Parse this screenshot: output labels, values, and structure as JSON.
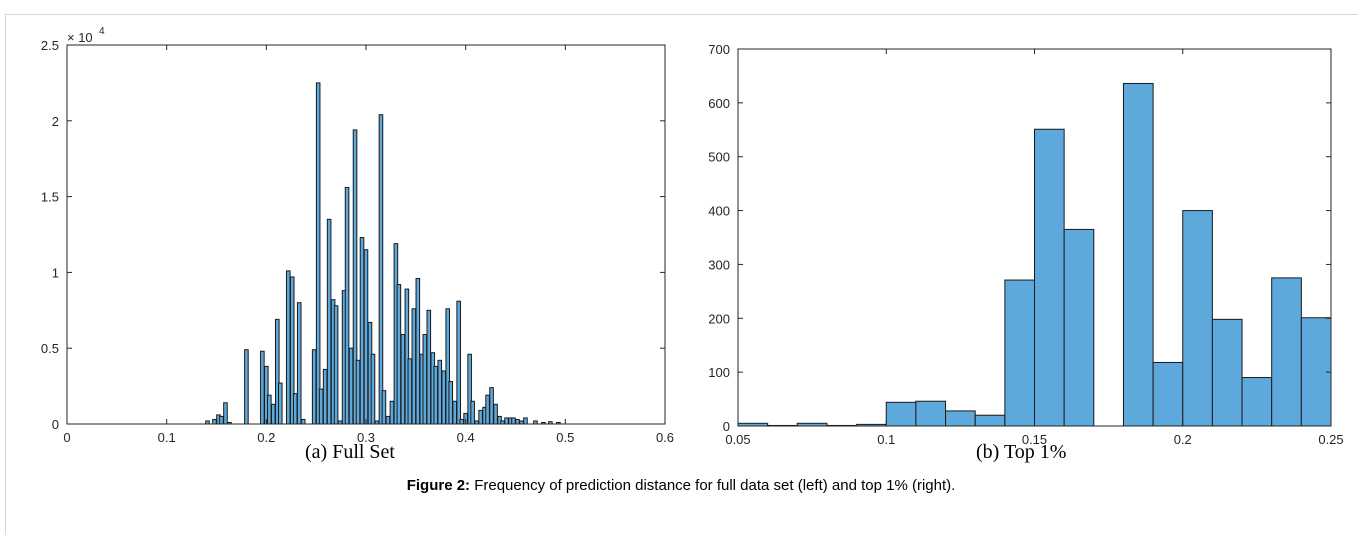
{
  "figure_caption": {
    "label": "Figure 2:",
    "text": " Frequency of prediction distance for full data set (left) and top 1% (right)."
  },
  "colors": {
    "bar_fill": "#5ea9dc",
    "bar_edge": "#1a1a1a",
    "axis": "#262626"
  },
  "chart_data": [
    {
      "type": "bar",
      "caption": "(a)  Full Set",
      "exponent_label": "× 10",
      "exponent_power": "4",
      "xlim": [
        0,
        0.6
      ],
      "ylim": [
        0,
        25000
      ],
      "xticks": [
        "0",
        "0.1",
        "0.2",
        "0.3",
        "0.4",
        "0.5",
        "0.6"
      ],
      "yticks": [
        "0",
        "0.5",
        "1",
        "1.5",
        "2",
        "2.5"
      ],
      "bar_width": 0.0036,
      "x": [
        0.141,
        0.148,
        0.152,
        0.155,
        0.159,
        0.163,
        0.18,
        0.196,
        0.2,
        0.203,
        0.207,
        0.211,
        0.214,
        0.222,
        0.226,
        0.229,
        0.233,
        0.237,
        0.248,
        0.252,
        0.255,
        0.259,
        0.263,
        0.267,
        0.27,
        0.274,
        0.278,
        0.281,
        0.285,
        0.289,
        0.292,
        0.296,
        0.3,
        0.304,
        0.307,
        0.311,
        0.315,
        0.318,
        0.322,
        0.326,
        0.33,
        0.333,
        0.337,
        0.341,
        0.344,
        0.348,
        0.352,
        0.356,
        0.359,
        0.363,
        0.367,
        0.37,
        0.374,
        0.378,
        0.382,
        0.385,
        0.389,
        0.393,
        0.396,
        0.4,
        0.404,
        0.407,
        0.411,
        0.415,
        0.419,
        0.422,
        0.426,
        0.43,
        0.434,
        0.437,
        0.441,
        0.445,
        0.448,
        0.452,
        0.456,
        0.46,
        0.47,
        0.478,
        0.485,
        0.493
      ],
      "values": [
        200,
        300,
        600,
        500,
        1400,
        100,
        4900,
        4800,
        3800,
        1900,
        1300,
        6900,
        2700,
        10100,
        9700,
        2000,
        8000,
        300,
        4900,
        22500,
        2300,
        3600,
        13500,
        8200,
        7800,
        200,
        8800,
        15600,
        5000,
        19400,
        4200,
        12300,
        11500,
        6700,
        4600,
        200,
        20400,
        2200,
        500,
        1500,
        11900,
        9200,
        5900,
        8900,
        4300,
        7600,
        9600,
        4600,
        5900,
        7500,
        4700,
        3800,
        4200,
        3500,
        7600,
        2800,
        1500,
        8100,
        300,
        700,
        4600,
        1500,
        200,
        900,
        1100,
        1900,
        2400,
        1300,
        500,
        200,
        400,
        400,
        400,
        300,
        200,
        400,
        200,
        100,
        150,
        100
      ]
    },
    {
      "type": "bar",
      "caption": "(b)  Top 1%",
      "xlim": [
        0.05,
        0.25
      ],
      "ylim": [
        0,
        700
      ],
      "xticks": [
        "0.05",
        "0.1",
        "0.15",
        "0.2",
        "0.25"
      ],
      "yticks": [
        "0",
        "100",
        "200",
        "300",
        "400",
        "500",
        "600",
        "700"
      ],
      "bin_edges": [
        0.05,
        0.06,
        0.07,
        0.08,
        0.09,
        0.1,
        0.11,
        0.12,
        0.13,
        0.14,
        0.15,
        0.16,
        0.17,
        0.18,
        0.19,
        0.2,
        0.21,
        0.22,
        0.23,
        0.24,
        0.25
      ],
      "values": [
        5,
        1,
        5,
        1,
        3,
        44,
        46,
        28,
        20,
        271,
        551,
        365,
        0,
        636,
        118,
        400,
        198,
        90,
        275,
        201
      ]
    }
  ]
}
